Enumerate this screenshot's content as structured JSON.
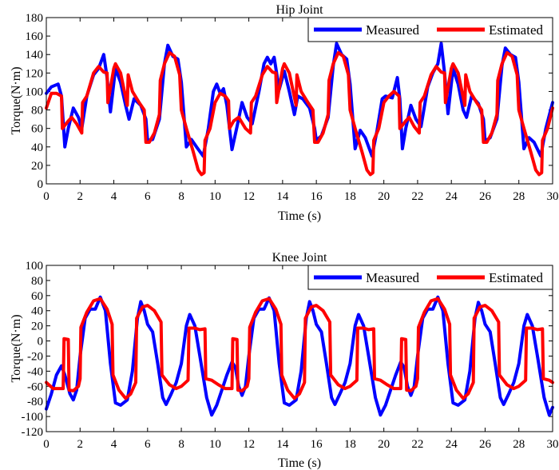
{
  "chart_data": [
    {
      "type": "line",
      "title": "Hip Joint",
      "xlabel": "Time (s)",
      "ylabel": "Torque(N·m)",
      "xlim": [
        0,
        30
      ],
      "ylim": [
        0,
        180
      ],
      "xticks": [
        0,
        2,
        4,
        6,
        8,
        10,
        12,
        14,
        16,
        18,
        20,
        22,
        24,
        26,
        28,
        30
      ],
      "yticks": [
        0,
        20,
        40,
        60,
        80,
        100,
        120,
        140,
        160,
        180
      ],
      "grid": false,
      "legend": "top-right",
      "series": [
        {
          "name": "Measured",
          "color": "#0000ff",
          "x": [
            0,
            0.3,
            0.7,
            0.9,
            1.1,
            1.3,
            1.6,
            1.9,
            2.1,
            2.4,
            2.8,
            3.1,
            3.4,
            3.6,
            3.8,
            4.1,
            4.4,
            4.7,
            4.9,
            5.2,
            5.6,
            5.9,
            6.0,
            6.3,
            6.7,
            7.0,
            7.2,
            7.5,
            7.8,
            8.0,
            8.3,
            8.6,
            8.9,
            9.3,
            9.6,
            9.9,
            10.1,
            10.3,
            10.5,
            10.7,
            11.0,
            11.3,
            11.6,
            11.9,
            12.2,
            12.6,
            12.9,
            13.1,
            13.3,
            13.5,
            13.8,
            14.1,
            14.4,
            14.7,
            14.9,
            15.2,
            15.6,
            15.9,
            16.0,
            16.3,
            16.7,
            17.0,
            17.2,
            17.5,
            17.8,
            18.0,
            18.3,
            18.6,
            18.9,
            19.3,
            19.6,
            19.9,
            20.1,
            20.5,
            20.8,
            20.95,
            21.1,
            21.3,
            21.6,
            21.9,
            22.2,
            22.6,
            22.9,
            23.2,
            23.4,
            23.6,
            23.8,
            24.1,
            24.4,
            24.7,
            24.9,
            25.2,
            25.6,
            25.9,
            26.0,
            26.3,
            26.7,
            27.0,
            27.2,
            27.5,
            27.8,
            28.0,
            28.3,
            28.6,
            28.9,
            29.3,
            29.6,
            30.0
          ],
          "y": [
            98,
            105,
            108,
            95,
            40,
            60,
            82,
            72,
            60,
            95,
            118,
            125,
            140,
            115,
            78,
            125,
            110,
            85,
            70,
            92,
            85,
            70,
            47,
            48,
            70,
            130,
            150,
            138,
            135,
            110,
            40,
            48,
            40,
            30,
            60,
            100,
            108,
            98,
            103,
            85,
            37,
            62,
            88,
            72,
            65,
            100,
            130,
            137,
            130,
            137,
            102,
            122,
            100,
            75,
            95,
            92,
            82,
            60,
            47,
            52,
            72,
            128,
            152,
            140,
            135,
            108,
            38,
            58,
            50,
            30,
            58,
            92,
            95,
            93,
            115,
            92,
            38,
            60,
            85,
            70,
            62,
            105,
            120,
            130,
            152,
            120,
            76,
            125,
            108,
            80,
            72,
            95,
            87,
            70,
            46,
            50,
            70,
            128,
            147,
            140,
            137,
            110,
            38,
            50,
            45,
            30,
            60,
            88
          ]
        },
        {
          "name": "Estimated",
          "color": "#ff0000",
          "x": [
            0,
            0.3,
            0.6,
            0.9,
            0.95,
            1.3,
            1.5,
            1.8,
            2.1,
            2.15,
            2.4,
            2.8,
            3.1,
            3.4,
            3.6,
            3.65,
            4.0,
            4.1,
            4.4,
            4.8,
            4.85,
            5.1,
            5.5,
            5.8,
            5.9,
            6.1,
            6.4,
            6.7,
            6.75,
            7.0,
            7.3,
            7.6,
            7.9,
            8.0,
            8.3,
            8.7,
            9.0,
            9.2,
            9.35,
            9.4,
            9.7,
            10.0,
            10.3,
            10.6,
            10.8,
            10.85,
            11.1,
            11.4,
            11.8,
            12.1,
            12.15,
            12.4,
            12.8,
            13.1,
            13.4,
            13.6,
            13.65,
            14.0,
            14.1,
            14.4,
            14.8,
            14.85,
            15.1,
            15.5,
            15.8,
            15.9,
            16.1,
            16.4,
            16.7,
            16.75,
            17.0,
            17.3,
            17.6,
            17.9,
            18.0,
            18.3,
            18.7,
            19.0,
            19.2,
            19.35,
            19.4,
            19.7,
            20.0,
            20.3,
            20.6,
            20.9,
            20.95,
            21.3,
            21.5,
            21.8,
            22.1,
            22.15,
            22.4,
            22.8,
            23.1,
            23.4,
            23.6,
            23.65,
            24.0,
            24.1,
            24.4,
            24.8,
            24.85,
            25.1,
            25.5,
            25.8,
            25.9,
            26.1,
            26.4,
            26.7,
            26.75,
            27.0,
            27.3,
            27.6,
            27.9,
            28.0,
            28.3,
            28.7,
            29.0,
            29.2,
            29.35,
            29.4,
            29.7,
            30.0
          ],
          "y": [
            82,
            98,
            98,
            95,
            60,
            68,
            72,
            65,
            55,
            88,
            95,
            120,
            127,
            121,
            120,
            88,
            125,
            130,
            120,
            85,
            118,
            100,
            88,
            80,
            45,
            45,
            55,
            75,
            112,
            130,
            142,
            138,
            118,
            80,
            60,
            35,
            15,
            10,
            12,
            47,
            60,
            88,
            98,
            95,
            90,
            60,
            68,
            72,
            60,
            55,
            88,
            95,
            118,
            127,
            121,
            120,
            88,
            125,
            130,
            120,
            85,
            118,
            100,
            88,
            80,
            45,
            45,
            55,
            75,
            112,
            130,
            142,
            138,
            118,
            80,
            60,
            35,
            15,
            10,
            12,
            47,
            60,
            88,
            95,
            100,
            95,
            60,
            68,
            72,
            62,
            55,
            88,
            95,
            118,
            127,
            121,
            120,
            88,
            125,
            130,
            120,
            85,
            118,
            100,
            88,
            80,
            45,
            45,
            55,
            75,
            112,
            130,
            142,
            138,
            118,
            80,
            60,
            35,
            15,
            10,
            12,
            47,
            60,
            82
          ]
        }
      ]
    },
    {
      "type": "line",
      "title": "Knee Joint",
      "xlabel": "Time (s)",
      "ylabel": "Torque(N·m)",
      "xlim": [
        0,
        30
      ],
      "ylim": [
        -120,
        100
      ],
      "xticks": [
        0,
        2,
        4,
        6,
        8,
        10,
        12,
        14,
        16,
        18,
        20,
        22,
        24,
        26,
        28,
        30
      ],
      "yticks": [
        -120,
        -100,
        -80,
        -60,
        -40,
        -20,
        0,
        20,
        40,
        60,
        80,
        100
      ],
      "grid": false,
      "legend": "top-right",
      "series": [
        {
          "name": "Measured",
          "color": "#0000ff",
          "x": [
            0,
            0.3,
            0.6,
            0.9,
            1.1,
            1.4,
            1.6,
            1.8,
            2.0,
            2.3,
            2.6,
            2.9,
            3.2,
            3.5,
            3.8,
            4.1,
            4.4,
            4.8,
            5.1,
            5.4,
            5.6,
            5.8,
            6.0,
            6.3,
            6.6,
            6.9,
            7.1,
            7.4,
            7.7,
            8.0,
            8.3,
            8.5,
            8.8,
            9.1,
            9.5,
            9.8,
            10.1,
            10.4,
            10.7,
            11.0,
            11.2,
            11.4,
            11.6,
            11.8,
            12.0,
            12.3,
            12.6,
            12.9,
            13.2,
            13.5,
            13.8,
            14.1,
            14.4,
            14.8,
            15.1,
            15.4,
            15.6,
            15.8,
            16.0,
            16.3,
            16.6,
            16.9,
            17.1,
            17.4,
            17.7,
            18.0,
            18.3,
            18.5,
            18.8,
            19.1,
            19.5,
            19.8,
            20.1,
            20.4,
            20.7,
            21.0,
            21.2,
            21.4,
            21.6,
            21.8,
            22.0,
            22.3,
            22.6,
            22.9,
            23.2,
            23.5,
            23.8,
            24.1,
            24.4,
            24.8,
            25.1,
            25.4,
            25.6,
            25.8,
            26.0,
            26.3,
            26.6,
            26.9,
            27.1,
            27.4,
            27.7,
            28.0,
            28.3,
            28.5,
            28.8,
            29.1,
            29.5,
            29.8,
            30.0
          ],
          "y": [
            -90,
            -70,
            -45,
            -33,
            -45,
            -70,
            -78,
            -65,
            -20,
            30,
            42,
            42,
            58,
            40,
            -30,
            -82,
            -85,
            -78,
            -40,
            30,
            52,
            40,
            22,
            12,
            -30,
            -75,
            -84,
            -70,
            -55,
            -30,
            20,
            35,
            20,
            -20,
            -75,
            -98,
            -85,
            -65,
            -45,
            -28,
            -35,
            -60,
            -72,
            -60,
            -20,
            30,
            42,
            42,
            57,
            40,
            -30,
            -82,
            -85,
            -78,
            -40,
            30,
            52,
            40,
            22,
            12,
            -30,
            -75,
            -84,
            -70,
            -55,
            -30,
            20,
            35,
            20,
            -20,
            -75,
            -98,
            -85,
            -65,
            -45,
            -28,
            -35,
            -60,
            -72,
            -60,
            -20,
            30,
            42,
            42,
            58,
            40,
            -30,
            -82,
            -85,
            -78,
            -40,
            30,
            51,
            40,
            22,
            12,
            -30,
            -75,
            -84,
            -70,
            -55,
            -30,
            20,
            35,
            20,
            -20,
            -75,
            -98,
            -88
          ]
        },
        {
          "name": "Estimated",
          "color": "#ff0000",
          "x": [
            0,
            0.4,
            0.8,
            1.0,
            1.05,
            1.3,
            1.35,
            1.6,
            1.9,
            2.0,
            2.05,
            2.4,
            2.8,
            3.2,
            3.6,
            3.9,
            3.95,
            4.3,
            4.7,
            5.0,
            5.3,
            5.35,
            5.7,
            6.0,
            6.4,
            6.8,
            6.85,
            7.3,
            7.7,
            8.0,
            8.4,
            8.45,
            8.8,
            9.1,
            9.4,
            9.45,
            9.8,
            10.2,
            10.6,
            11.0,
            11.05,
            11.3,
            11.35,
            11.6,
            11.9,
            12.0,
            12.05,
            12.4,
            12.8,
            13.2,
            13.6,
            13.9,
            13.95,
            14.3,
            14.7,
            15.0,
            15.3,
            15.35,
            15.7,
            16.0,
            16.4,
            16.8,
            16.85,
            17.3,
            17.7,
            18.0,
            18.4,
            18.45,
            18.8,
            19.1,
            19.4,
            19.45,
            19.8,
            20.2,
            20.6,
            21.0,
            21.05,
            21.3,
            21.35,
            21.6,
            21.9,
            22.0,
            22.05,
            22.4,
            22.8,
            23.2,
            23.6,
            23.9,
            23.95,
            24.3,
            24.7,
            25.0,
            25.3,
            25.35,
            25.7,
            26.0,
            26.4,
            26.8,
            26.85,
            27.3,
            27.7,
            28.0,
            28.4,
            28.45,
            28.8,
            29.1,
            29.4,
            29.45,
            29.8,
            30.0
          ],
          "y": [
            -55,
            -63,
            -63,
            -63,
            3,
            2,
            -65,
            -66,
            -60,
            -50,
            18,
            38,
            53,
            56,
            42,
            22,
            -45,
            -65,
            -76,
            -70,
            -55,
            30,
            45,
            47,
            40,
            25,
            -45,
            -58,
            -63,
            -60,
            -52,
            17,
            17,
            15,
            16,
            -50,
            -52,
            -58,
            -63,
            -63,
            3,
            2,
            -65,
            -66,
            -60,
            -50,
            18,
            38,
            53,
            56,
            42,
            22,
            -45,
            -65,
            -76,
            -70,
            -55,
            30,
            45,
            47,
            40,
            25,
            -45,
            -58,
            -63,
            -60,
            -52,
            17,
            17,
            15,
            16,
            -50,
            -52,
            -58,
            -63,
            -63,
            3,
            2,
            -65,
            -66,
            -60,
            -50,
            18,
            38,
            53,
            56,
            42,
            22,
            -45,
            -65,
            -76,
            -70,
            -55,
            30,
            45,
            47,
            40,
            25,
            -45,
            -58,
            -63,
            -60,
            -52,
            17,
            17,
            15,
            16,
            -50,
            -52,
            -55
          ]
        }
      ]
    }
  ]
}
